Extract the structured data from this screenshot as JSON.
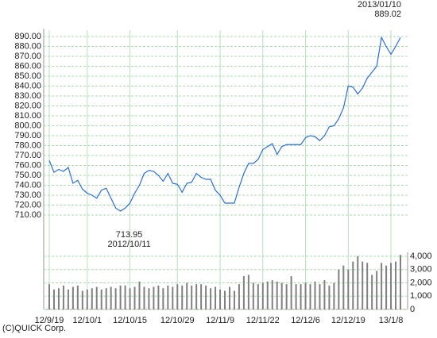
{
  "chart_data": [
    {
      "type": "line",
      "color": "#2a6fd6",
      "values": [
        765,
        753,
        756,
        754,
        758,
        742,
        745,
        736,
        732,
        730,
        727,
        735,
        737,
        727,
        717,
        713.95,
        717,
        722,
        732,
        740,
        752,
        755,
        754,
        750,
        744,
        752,
        742,
        741,
        733,
        742,
        743,
        752,
        748,
        746,
        746,
        735,
        730,
        722,
        722,
        722,
        738,
        752,
        762,
        762,
        766,
        776,
        779,
        782,
        771,
        779,
        781,
        781,
        781,
        781,
        788,
        790,
        789,
        785,
        790,
        799,
        800,
        807,
        818,
        840,
        839,
        832,
        838,
        848,
        854,
        860,
        889,
        880,
        872,
        880,
        889.02
      ],
      "ylim": [
        700,
        896
      ],
      "yticks": [
        {
          "value": 710,
          "label": "710.00"
        },
        {
          "value": 720,
          "label": "720.00"
        },
        {
          "value": 730,
          "label": "730.00"
        },
        {
          "value": 740,
          "label": "740.00"
        },
        {
          "value": 750,
          "label": "750.00"
        },
        {
          "value": 760,
          "label": "760.00"
        },
        {
          "value": 770,
          "label": "770.00"
        },
        {
          "value": 780,
          "label": "780.00"
        },
        {
          "value": 790,
          "label": "790.00"
        },
        {
          "value": 800,
          "label": "800.00"
        },
        {
          "value": 810,
          "label": "810.00"
        },
        {
          "value": 820,
          "label": "820.00"
        },
        {
          "value": 830,
          "label": "830.00"
        },
        {
          "value": 840,
          "label": "840.00"
        },
        {
          "value": 850,
          "label": "850.00"
        },
        {
          "value": 860,
          "label": "860.00"
        },
        {
          "value": 870,
          "label": "870.00"
        },
        {
          "value": 880,
          "label": "880.00"
        },
        {
          "value": 890,
          "label": "890.00"
        }
      ],
      "grid": true,
      "annotations": [
        {
          "index": 15,
          "value": 713.95,
          "date": "2012/10/11"
        },
        {
          "index": 74,
          "value": 889.02,
          "date": "2013/01/10"
        }
      ]
    },
    {
      "type": "bar",
      "color": "#808080",
      "categories": [
        "12/9/19",
        null,
        null,
        null,
        null,
        null,
        null,
        null,
        "12/10/1",
        null,
        null,
        null,
        null,
        null,
        null,
        null,
        null,
        "12/10/15",
        null,
        null,
        null,
        null,
        null,
        null,
        null,
        null,
        null,
        "12/10/29",
        null,
        null,
        null,
        null,
        null,
        null,
        null,
        null,
        "12/11/9",
        null,
        null,
        null,
        null,
        null,
        null,
        null,
        null,
        "12/11/22",
        null,
        null,
        null,
        null,
        null,
        null,
        null,
        null,
        "12/12/6",
        null,
        null,
        null,
        null,
        null,
        null,
        null,
        null,
        "12/12/19",
        null,
        null,
        null,
        null,
        null,
        null,
        null,
        null,
        "13/1/8",
        null,
        null
      ],
      "values": [
        1900,
        1500,
        1600,
        1800,
        1500,
        1700,
        1800,
        1400,
        1500,
        1600,
        1700,
        1500,
        1600,
        1700,
        1600,
        1800,
        1800,
        1600,
        1700,
        2100,
        1700,
        1600,
        1700,
        1800,
        1600,
        1800,
        1700,
        1900,
        1800,
        2000,
        1800,
        1900,
        1900,
        1800,
        1600,
        1700,
        1500,
        1400,
        1700,
        1400,
        1900,
        2500,
        2600,
        2000,
        1900,
        2000,
        2100,
        2200,
        2100,
        2000,
        1900,
        2500,
        1900,
        1900,
        2000,
        1900,
        2100,
        1900,
        2200,
        1800,
        2000,
        3000,
        3300,
        3000,
        3600,
        4000,
        3600,
        3500,
        2600,
        2900,
        3500,
        3300,
        3500,
        3600,
        4100
      ],
      "ylim": [
        0,
        4200
      ],
      "yticks": [
        0,
        {
          "value": 1000,
          "label": "1,000"
        },
        {
          "value": 2000,
          "label": "2,000"
        },
        {
          "value": 3000,
          "label": "3,000"
        },
        {
          "value": 4000,
          "label": "4,000"
        }
      ],
      "grid": true
    }
  ],
  "footer": "(C)QUICK Corp."
}
